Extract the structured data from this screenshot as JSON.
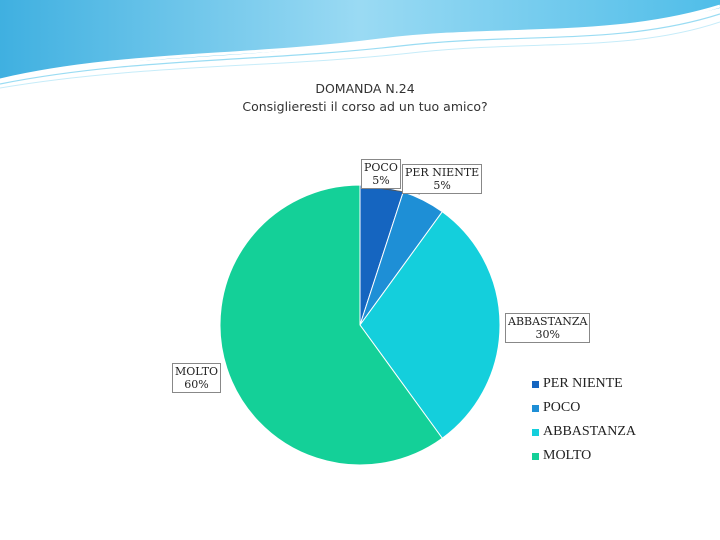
{
  "chart_data": {
    "type": "pie",
    "title": "DOMANDA N.24",
    "subtitle": "Consiglieresti il corso ad un tuo amico?",
    "categories": [
      "PER NIENTE",
      "POCO",
      "ABBASTANZA",
      "MOLTO"
    ],
    "values": [
      5,
      5,
      30,
      60
    ],
    "value_labels": [
      "5%",
      "5%",
      "30%",
      "60%"
    ],
    "colors": [
      "#1565c0",
      "#1e8fd6",
      "#14cfdc",
      "#14d098"
    ],
    "legend_position": "right"
  },
  "colors": {
    "decor_wave": "#5bbfe5",
    "label_border": "#888888"
  }
}
